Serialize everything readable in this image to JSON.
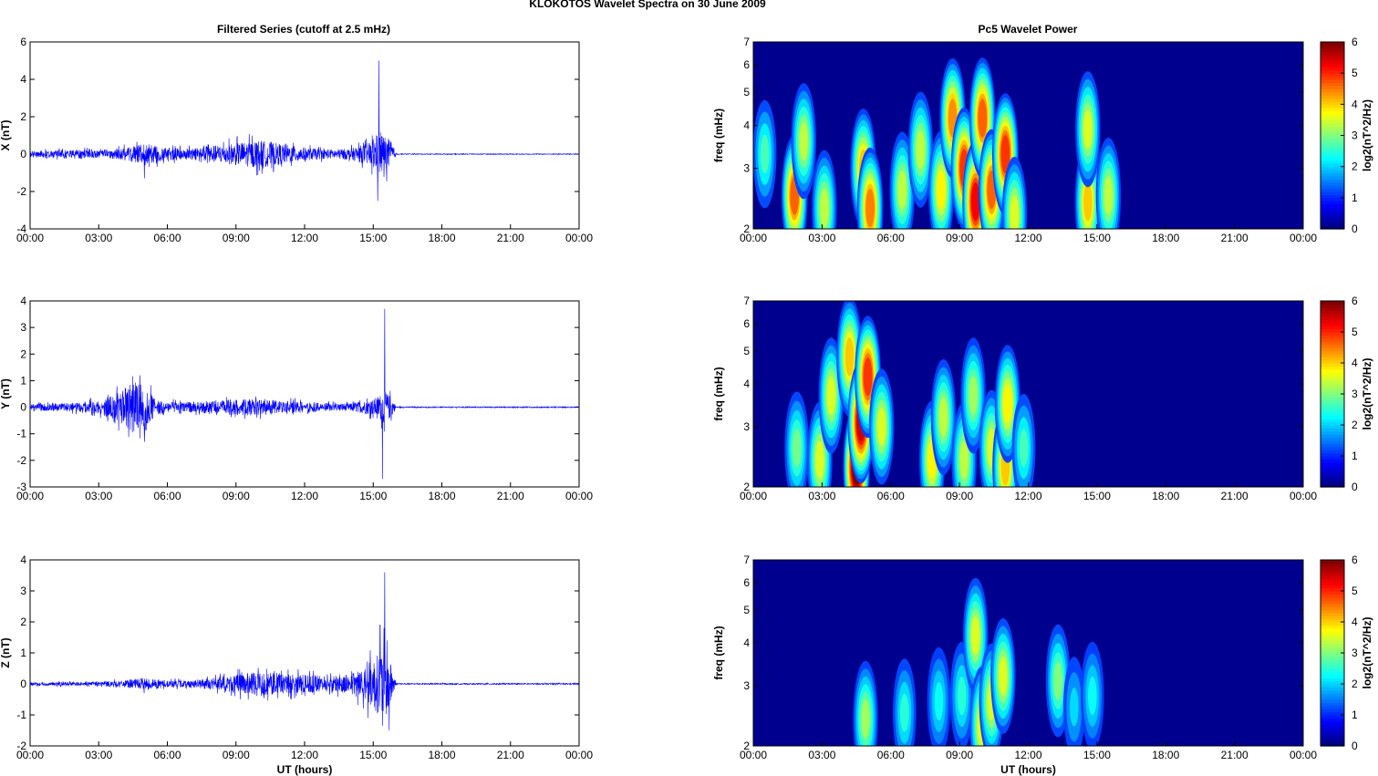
{
  "figure": {
    "title": "KLOKOTOS Wavelet Spectra on 30 June      2009",
    "left_title": "Filtered Series (cutoff at 2.5 mHz)",
    "right_title": "Pc5 Wavelet Power",
    "xlabel": "UT (hours)"
  },
  "colors": {
    "trace": "#0000ff",
    "heatmap_background": "#00008f",
    "colormap": "jet"
  },
  "x_ticks": [
    "00:00",
    "03:00",
    "06:00",
    "09:00",
    "12:00",
    "15:00",
    "18:00",
    "21:00",
    "00:00"
  ],
  "chart_data": [
    {
      "type": "line",
      "title": "Filtered Series (cutoff at 2.5 mHz)",
      "component": "X",
      "ylabel": "X (nT)",
      "xlim": [
        0,
        24
      ],
      "ylim": [
        -4,
        6
      ],
      "yticks": [
        -4,
        -2,
        0,
        2,
        4,
        6
      ],
      "envelope": {
        "x_hours": [
          0,
          1,
          2,
          3,
          4,
          5,
          6,
          7,
          8,
          9,
          10,
          11,
          12,
          13,
          14,
          14.8,
          15.3,
          15.8,
          16,
          24
        ],
        "amplitude": [
          0.18,
          0.2,
          0.25,
          0.2,
          0.3,
          0.55,
          0.35,
          0.3,
          0.45,
          0.6,
          0.75,
          0.55,
          0.35,
          0.25,
          0.3,
          0.6,
          1.2,
          0.7,
          0.02,
          0.02
        ]
      },
      "peaks": [
        {
          "x": 15.25,
          "y": 5.0
        },
        {
          "x": 15.2,
          "y": -2.5
        },
        {
          "x": 5.0,
          "y": -1.3
        }
      ]
    },
    {
      "type": "line",
      "component": "Y",
      "ylabel": "Y (nT)",
      "xlim": [
        0,
        24
      ],
      "ylim": [
        -3,
        4
      ],
      "yticks": [
        -3,
        -2,
        -1,
        0,
        1,
        2,
        3,
        4
      ],
      "envelope": {
        "x_hours": [
          0,
          1,
          2,
          3,
          4,
          4.5,
          5,
          5.5,
          6,
          7,
          8,
          9,
          10,
          11,
          12,
          13,
          14,
          15,
          15.5,
          15.8,
          16,
          24
        ],
        "amplitude": [
          0.12,
          0.15,
          0.18,
          0.25,
          0.6,
          1.0,
          0.8,
          0.3,
          0.2,
          0.2,
          0.25,
          0.3,
          0.3,
          0.25,
          0.2,
          0.15,
          0.15,
          0.3,
          0.6,
          0.4,
          0.02,
          0.02
        ]
      },
      "peaks": [
        {
          "x": 15.5,
          "y": 3.7
        },
        {
          "x": 15.4,
          "y": -2.7
        },
        {
          "x": 4.8,
          "y": 1.2
        },
        {
          "x": 5.0,
          "y": -1.3
        }
      ]
    },
    {
      "type": "line",
      "component": "Z",
      "ylabel": "Z (nT)",
      "xlabel": "UT (hours)",
      "xlim": [
        0,
        24
      ],
      "ylim": [
        -2,
        4
      ],
      "yticks": [
        -2,
        -1,
        0,
        1,
        2,
        3,
        4
      ],
      "envelope": {
        "x_hours": [
          0,
          1,
          2,
          3,
          4,
          5,
          6,
          7,
          8,
          9,
          10,
          11,
          12,
          13,
          14,
          15,
          15.5,
          15.8,
          16,
          24
        ],
        "amplitude": [
          0.05,
          0.06,
          0.06,
          0.08,
          0.1,
          0.2,
          0.12,
          0.12,
          0.2,
          0.3,
          0.4,
          0.35,
          0.3,
          0.25,
          0.3,
          0.8,
          1.2,
          0.6,
          0.02,
          0.02
        ]
      },
      "peaks": [
        {
          "x": 15.5,
          "y": 3.6
        },
        {
          "x": 15.7,
          "y": -1.5
        },
        {
          "x": 15.3,
          "y": 1.9
        }
      ]
    },
    {
      "type": "heatmap",
      "title": "Pc5 Wavelet Power",
      "component": "X",
      "ylabel": "freq (mHz)",
      "yscale": "log",
      "xlim": [
        0,
        24
      ],
      "ylim": [
        2,
        7
      ],
      "yticks": [
        2,
        3,
        4,
        5,
        6,
        7
      ],
      "colorbar": {
        "label": "log2(nT^2/Hz)",
        "range": [
          0,
          6
        ],
        "ticks": [
          0,
          1,
          2,
          3,
          4,
          5,
          6
        ]
      },
      "blobs": [
        {
          "t": 0.5,
          "f": 3.3,
          "p": 2.2
        },
        {
          "t": 1.8,
          "f": 2.5,
          "p": 4.5
        },
        {
          "t": 2.2,
          "f": 3.6,
          "p": 3.0
        },
        {
          "t": 3.1,
          "f": 2.3,
          "p": 3.0
        },
        {
          "t": 4.8,
          "f": 3.0,
          "p": 3.8
        },
        {
          "t": 5.1,
          "f": 2.3,
          "p": 4.3
        },
        {
          "t": 6.5,
          "f": 2.6,
          "p": 3.0
        },
        {
          "t": 7.3,
          "f": 3.4,
          "p": 3.0
        },
        {
          "t": 8.2,
          "f": 2.6,
          "p": 3.5
        },
        {
          "t": 8.7,
          "f": 4.2,
          "p": 4.2
        },
        {
          "t": 9.2,
          "f": 3.0,
          "p": 4.8
        },
        {
          "t": 9.7,
          "f": 2.4,
          "p": 5.2
        },
        {
          "t": 10.0,
          "f": 4.2,
          "p": 4.5
        },
        {
          "t": 10.4,
          "f": 2.6,
          "p": 4.5
        },
        {
          "t": 11.0,
          "f": 3.3,
          "p": 4.8
        },
        {
          "t": 11.4,
          "f": 2.2,
          "p": 3.2
        },
        {
          "t": 14.6,
          "f": 2.4,
          "p": 3.8
        },
        {
          "t": 14.6,
          "f": 3.9,
          "p": 3.2
        },
        {
          "t": 15.5,
          "f": 2.5,
          "p": 3.0
        }
      ]
    },
    {
      "type": "heatmap",
      "component": "Y",
      "ylabel": "freq (mHz)",
      "yscale": "log",
      "xlim": [
        0,
        24
      ],
      "ylim": [
        2,
        7
      ],
      "yticks": [
        2,
        3,
        4,
        5,
        6,
        7
      ],
      "colorbar": {
        "label": "log2(nT^2/Hz)",
        "range": [
          0,
          6
        ],
        "ticks": [
          0,
          1,
          2,
          3,
          4,
          5,
          6
        ]
      },
      "blobs": [
        {
          "t": 1.9,
          "f": 2.6,
          "p": 2.5
        },
        {
          "t": 2.9,
          "f": 2.4,
          "p": 3.2
        },
        {
          "t": 3.4,
          "f": 3.7,
          "p": 3.2
        },
        {
          "t": 4.2,
          "f": 4.8,
          "p": 3.8
        },
        {
          "t": 4.5,
          "f": 2.3,
          "p": 6.0
        },
        {
          "t": 4.7,
          "f": 3.1,
          "p": 5.5
        },
        {
          "t": 5.0,
          "f": 4.2,
          "p": 4.8
        },
        {
          "t": 5.6,
          "f": 3.0,
          "p": 3.2
        },
        {
          "t": 7.8,
          "f": 2.4,
          "p": 3.5
        },
        {
          "t": 8.3,
          "f": 3.2,
          "p": 3.0
        },
        {
          "t": 9.2,
          "f": 2.4,
          "p": 3.0
        },
        {
          "t": 9.6,
          "f": 3.7,
          "p": 2.8
        },
        {
          "t": 10.4,
          "f": 2.6,
          "p": 3.2
        },
        {
          "t": 11.0,
          "f": 2.3,
          "p": 3.8
        },
        {
          "t": 11.1,
          "f": 3.5,
          "p": 3.5
        },
        {
          "t": 11.8,
          "f": 2.6,
          "p": 2.2
        }
      ]
    },
    {
      "type": "heatmap",
      "component": "Z",
      "ylabel": "freq (mHz)",
      "xlabel": "UT (hours)",
      "yscale": "log",
      "xlim": [
        0,
        24
      ],
      "ylim": [
        2,
        7
      ],
      "yticks": [
        2,
        3,
        4,
        5,
        6,
        7
      ],
      "colorbar": {
        "label": "log2(nT^2/Hz)",
        "range": [
          0,
          6
        ],
        "ticks": [
          0,
          1,
          2,
          3,
          4,
          5,
          6
        ]
      },
      "blobs": [
        {
          "t": 4.9,
          "f": 2.4,
          "p": 2.8
        },
        {
          "t": 6.6,
          "f": 2.5,
          "p": 2.0
        },
        {
          "t": 8.1,
          "f": 2.7,
          "p": 1.8
        },
        {
          "t": 9.1,
          "f": 2.8,
          "p": 2.0
        },
        {
          "t": 9.7,
          "f": 4.2,
          "p": 3.2
        },
        {
          "t": 10.0,
          "f": 2.3,
          "p": 3.5
        },
        {
          "t": 10.4,
          "f": 2.7,
          "p": 3.2
        },
        {
          "t": 10.9,
          "f": 3.2,
          "p": 3.2
        },
        {
          "t": 13.3,
          "f": 3.1,
          "p": 2.6
        },
        {
          "t": 14.0,
          "f": 2.6,
          "p": 1.5
        },
        {
          "t": 14.8,
          "f": 2.8,
          "p": 1.8
        }
      ]
    }
  ]
}
